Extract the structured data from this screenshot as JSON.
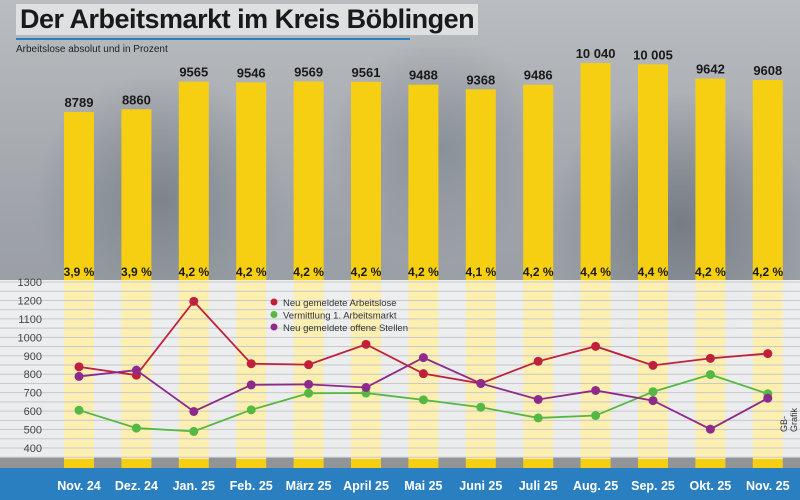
{
  "chart_data": [
    {
      "type": "bar",
      "title": "Der Arbeitsmarkt im Kreis Böblingen",
      "subtitle": "Arbeitslose absolut und in Prozent",
      "categories": [
        "Nov. 24",
        "Dez. 24",
        "Jan. 25",
        "Feb. 25",
        "März 25",
        "April 25",
        "Mai 25",
        "Juni 25",
        "Juli 25",
        "Aug. 25",
        "Sep. 25",
        "Okt. 25",
        "Nov. 25"
      ],
      "values": [
        8789,
        8860,
        9565,
        9546,
        9569,
        9561,
        9488,
        9368,
        9486,
        10040,
        10005,
        9642,
        9608
      ],
      "value_labels": [
        "8789",
        "8860",
        "9565",
        "9546",
        "9569",
        "9561",
        "9488",
        "9368",
        "9486",
        "10 040",
        "10 005",
        "9642",
        "9608"
      ],
      "percent_labels": [
        "3,9 %",
        "3,9 %",
        "4,2 %",
        "4,2 %",
        "4,2 %",
        "4,2 %",
        "4,2 %",
        "4,1 %",
        "4,2 %",
        "4,4 %",
        "4,4 %",
        "4,2 %",
        "4,2 %"
      ],
      "color": "#f6cf13"
    },
    {
      "type": "line",
      "categories": [
        "Nov. 24",
        "Dez. 24",
        "Jan. 25",
        "Feb. 25",
        "März 25",
        "April 25",
        "Mai 25",
        "Juni 25",
        "Juli 25",
        "Aug. 25",
        "Sep. 25",
        "Okt. 25",
        "Nov. 25"
      ],
      "ylim": [
        400,
        1300
      ],
      "yticks": [
        1300,
        1200,
        1100,
        1000,
        900,
        800,
        700,
        600,
        500,
        400
      ],
      "grid": true,
      "legend_position": "top-center",
      "series": [
        {
          "name": "Neu gemeldete Arbeitslose",
          "color": "#c0203c",
          "values": [
            840,
            795,
            1195,
            857,
            852,
            962,
            803,
            750,
            870,
            951,
            848,
            886,
            912
          ]
        },
        {
          "name": "Vermittlung  1. Arbeitsmarkt",
          "color": "#55b842",
          "values": [
            605,
            508,
            490,
            607,
            697,
            698,
            661,
            621,
            563,
            576,
            705,
            798,
            694
          ]
        },
        {
          "name": "Neu gemeldete offene Stellen",
          "color": "#8e2a8c",
          "values": [
            788,
            822,
            598,
            742,
            745,
            728,
            890,
            750,
            663,
            712,
            657,
            502,
            670
          ]
        }
      ]
    }
  ],
  "credit": "GB-Grafik",
  "colors": {
    "band": "#2a7fc1",
    "bar": "#f6cf13"
  }
}
